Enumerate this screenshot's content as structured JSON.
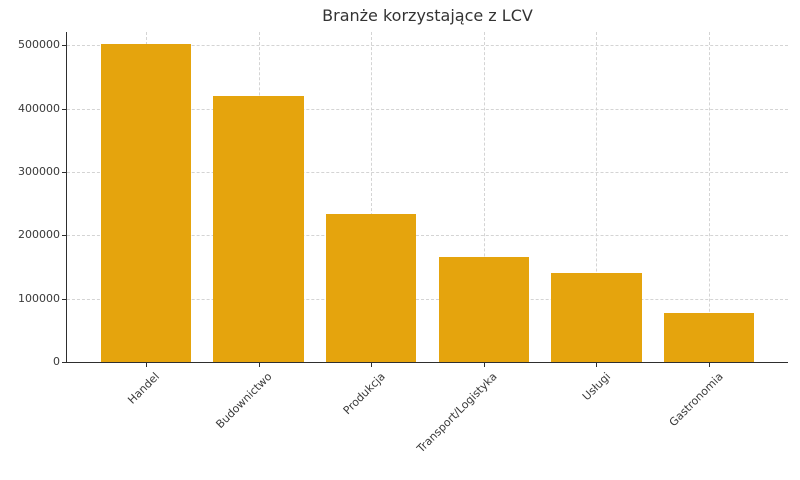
{
  "chart_data": {
    "type": "bar",
    "title": "Branże korzystające z LCV",
    "categories": [
      "Handel",
      "Budownictwo",
      "Produkcja",
      "Transport/Logistyka",
      "Usługi",
      "Gastronomia"
    ],
    "values": [
      502000,
      420000,
      234000,
      165000,
      141000,
      78000
    ],
    "xlabel": "",
    "ylabel": "",
    "ylim": [
      0,
      521000
    ],
    "yticks": [
      0,
      100000,
      200000,
      300000,
      400000,
      500000
    ],
    "ytick_labels": [
      "0",
      "100000",
      "200000",
      "300000",
      "400000",
      "500000"
    ],
    "x_tick_rotation": 45,
    "grid": true,
    "legend_position": "none",
    "bar_color": "#E5A40D",
    "axis_color": "#2e2e2e",
    "grid_color": "#d4d4d4",
    "text_color": "#3a3a3a"
  }
}
